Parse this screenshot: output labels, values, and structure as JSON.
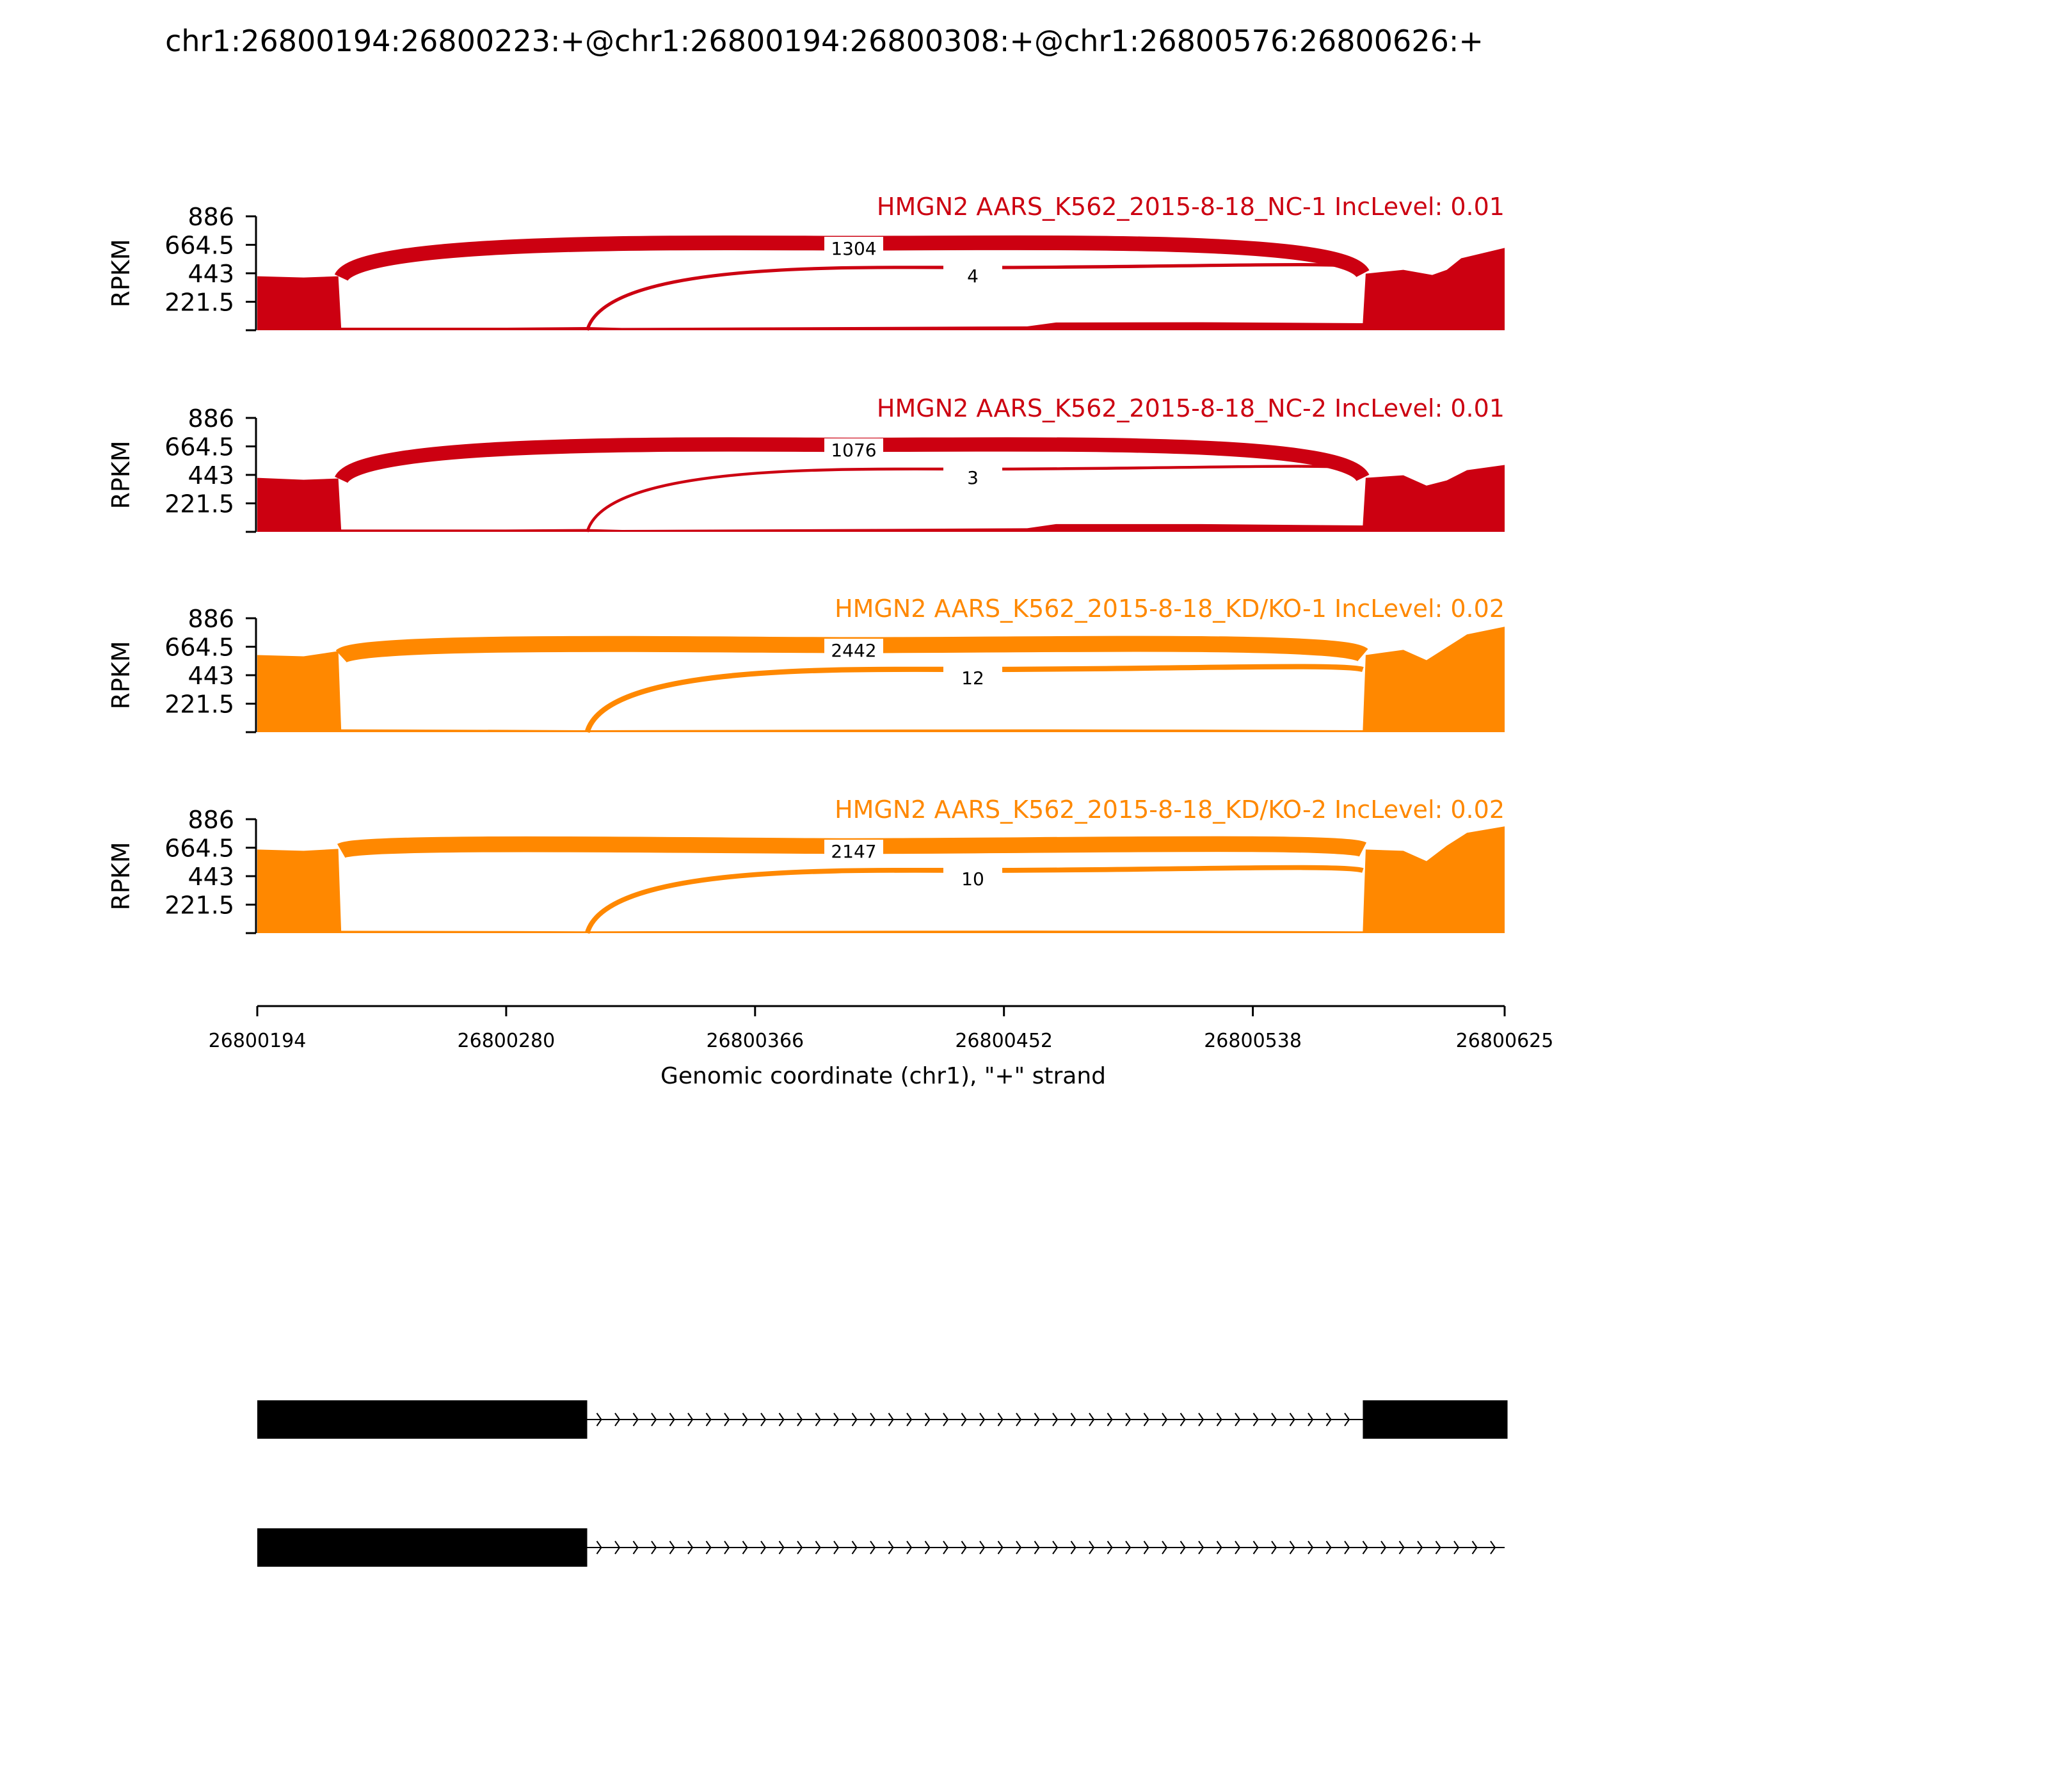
{
  "chart_data": {
    "type": "area",
    "title": "chr1:26800194:26800223:+@chr1:26800194:26800308:+@chr1:26800576:26800626:+",
    "xlabel": "Genomic coordinate (chr1), \"+\" strand",
    "xlim": [
      26800194,
      26800625
    ],
    "x_ticks": [
      "26800194",
      "26800280",
      "26800366",
      "26800452",
      "26800538",
      "26800625"
    ],
    "ylabel": "RPKM",
    "ylim": [
      0,
      886
    ],
    "y_ticks": [
      "221.5",
      "443",
      "664.5",
      "886"
    ],
    "grid": false,
    "panels": [
      {
        "name": "HMGN2 AARS_K562_2015-8-18_NC-1 IncLevel: 0.01",
        "color": "#cc0011",
        "coverage": [
          [
            26800194,
            420
          ],
          [
            26800210,
            410
          ],
          [
            26800222,
            420
          ],
          [
            26800223,
            20
          ],
          [
            26800280,
            20
          ],
          [
            26800308,
            25
          ],
          [
            26800320,
            18
          ],
          [
            26800400,
            25
          ],
          [
            26800460,
            30
          ],
          [
            26800470,
            60
          ],
          [
            26800520,
            62
          ],
          [
            26800576,
            55
          ],
          [
            26800577,
            440
          ],
          [
            26800590,
            470
          ],
          [
            26800600,
            430
          ],
          [
            26800605,
            470
          ],
          [
            26800610,
            560
          ],
          [
            26800625,
            640
          ]
        ],
        "junctions": [
          {
            "label": "1304",
            "value": 1304,
            "from": 26800223,
            "to": 26800576
          },
          {
            "label": "4",
            "value": 4,
            "from": 26800308,
            "to": 26800576
          }
        ]
      },
      {
        "name": "HMGN2 AARS_K562_2015-8-18_NC-2 IncLevel: 0.01",
        "color": "#cc0011",
        "coverage": [
          [
            26800194,
            420
          ],
          [
            26800210,
            405
          ],
          [
            26800222,
            415
          ],
          [
            26800223,
            18
          ],
          [
            26800280,
            18
          ],
          [
            26800308,
            22
          ],
          [
            26800320,
            15
          ],
          [
            26800400,
            22
          ],
          [
            26800460,
            28
          ],
          [
            26800470,
            60
          ],
          [
            26800520,
            60
          ],
          [
            26800576,
            50
          ],
          [
            26800577,
            420
          ],
          [
            26800590,
            440
          ],
          [
            26800598,
            360
          ],
          [
            26800605,
            400
          ],
          [
            26800612,
            480
          ],
          [
            26800625,
            520
          ]
        ],
        "junctions": [
          {
            "label": "1076",
            "value": 1076,
            "from": 26800223,
            "to": 26800576
          },
          {
            "label": "3",
            "value": 3,
            "from": 26800308,
            "to": 26800576
          }
        ]
      },
      {
        "name": "HMGN2 AARS_K562_2015-8-18_KD/KO-1 IncLevel: 0.02",
        "color": "#ff8800",
        "coverage": [
          [
            26800194,
            600
          ],
          [
            26800210,
            590
          ],
          [
            26800222,
            630
          ],
          [
            26800223,
            22
          ],
          [
            26800280,
            18
          ],
          [
            26800308,
            15
          ],
          [
            26800400,
            20
          ],
          [
            26800460,
            22
          ],
          [
            26800520,
            20
          ],
          [
            26800576,
            15
          ],
          [
            26800577,
            600
          ],
          [
            26800590,
            640
          ],
          [
            26800598,
            560
          ],
          [
            26800605,
            660
          ],
          [
            26800612,
            760
          ],
          [
            26800625,
            820
          ]
        ],
        "junctions": [
          {
            "label": "2442",
            "value": 2442,
            "from": 26800223,
            "to": 26800576
          },
          {
            "label": "12",
            "value": 12,
            "from": 26800308,
            "to": 26800576
          }
        ]
      },
      {
        "name": "HMGN2 AARS_K562_2015-8-18_KD/KO-2 IncLevel: 0.02",
        "color": "#ff8800",
        "coverage": [
          [
            26800194,
            650
          ],
          [
            26800210,
            640
          ],
          [
            26800222,
            655
          ],
          [
            26800223,
            18
          ],
          [
            26800280,
            16
          ],
          [
            26800308,
            14
          ],
          [
            26800400,
            18
          ],
          [
            26800460,
            20
          ],
          [
            26800520,
            18
          ],
          [
            26800576,
            14
          ],
          [
            26800577,
            650
          ],
          [
            26800590,
            640
          ],
          [
            26800598,
            560
          ],
          [
            26800605,
            680
          ],
          [
            26800612,
            780
          ],
          [
            26800625,
            830
          ]
        ],
        "junctions": [
          {
            "label": "2147",
            "value": 2147,
            "from": 26800223,
            "to": 26800576
          },
          {
            "label": "10",
            "value": 10,
            "from": 26800308,
            "to": 26800576
          }
        ]
      }
    ],
    "transcripts": [
      {
        "exons": [
          [
            26800194,
            26800308
          ],
          [
            26800576,
            26800626
          ]
        ],
        "strand": "+"
      },
      {
        "exons": [
          [
            26800194,
            26800308
          ]
        ],
        "strand": "+"
      }
    ]
  }
}
